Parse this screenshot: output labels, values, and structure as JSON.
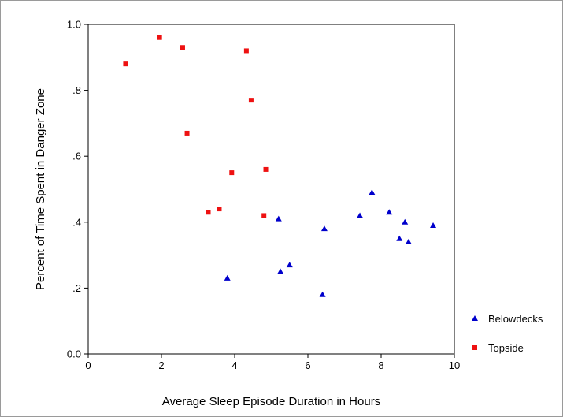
{
  "chart_data": {
    "type": "scatter",
    "title": "",
    "xlabel": "Average Sleep Episode Duration in Hours",
    "ylabel": "Percent of Time Spent in Danger Zone",
    "xlim": [
      0,
      10
    ],
    "ylim": [
      0,
      1
    ],
    "x_ticks": [
      0,
      2,
      4,
      6,
      8,
      10
    ],
    "x_tick_labels": [
      "0",
      "2",
      "4",
      "6",
      "8",
      "10"
    ],
    "y_ticks": [
      0,
      0.2,
      0.4,
      0.6,
      0.8,
      1.0
    ],
    "y_tick_labels": [
      "0.0",
      ".2",
      ".4",
      ".6",
      ".8",
      "1.0"
    ],
    "grid": false,
    "legend_position": "right",
    "series": [
      {
        "name": "Belowdecks",
        "marker": "triangle",
        "color": "#0000cc",
        "points": [
          [
            3.8,
            0.23
          ],
          [
            5.2,
            0.41
          ],
          [
            5.25,
            0.25
          ],
          [
            5.5,
            0.27
          ],
          [
            6.4,
            0.18
          ],
          [
            6.45,
            0.38
          ],
          [
            7.42,
            0.42
          ],
          [
            7.75,
            0.49
          ],
          [
            8.22,
            0.43
          ],
          [
            8.5,
            0.35
          ],
          [
            8.65,
            0.4
          ],
          [
            8.75,
            0.34
          ],
          [
            9.42,
            0.39
          ]
        ]
      },
      {
        "name": "Topside",
        "marker": "square",
        "color": "#ee1111",
        "points": [
          [
            1.02,
            0.88
          ],
          [
            1.95,
            0.96
          ],
          [
            2.58,
            0.93
          ],
          [
            2.7,
            0.67
          ],
          [
            3.28,
            0.43
          ],
          [
            3.58,
            0.44
          ],
          [
            3.92,
            0.55
          ],
          [
            4.32,
            0.92
          ],
          [
            4.45,
            0.77
          ],
          [
            4.8,
            0.42
          ],
          [
            4.85,
            0.56
          ]
        ]
      }
    ]
  }
}
